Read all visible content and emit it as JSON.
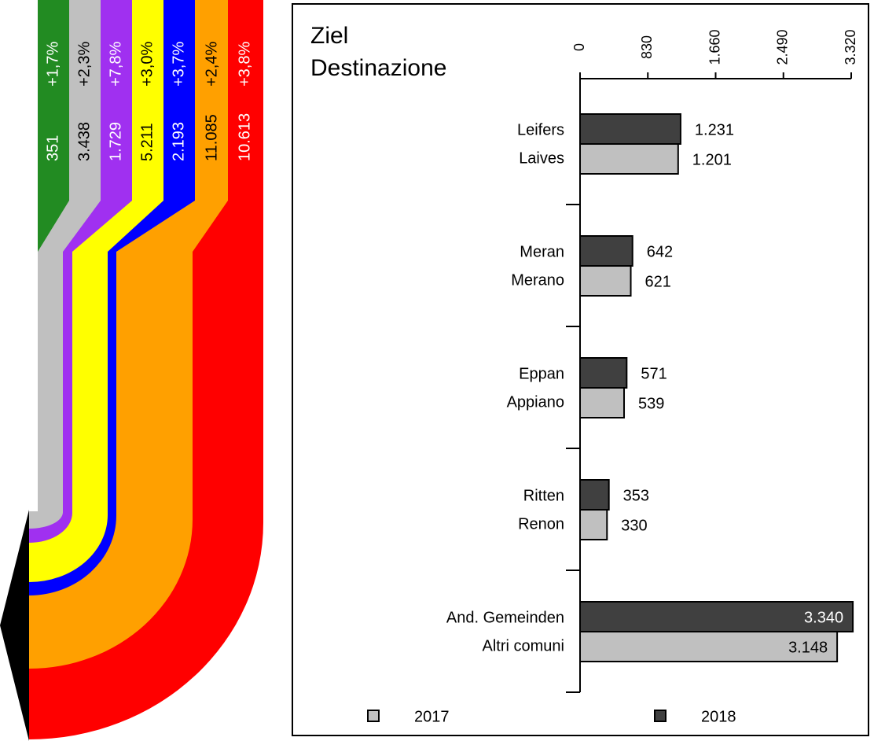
{
  "flows": [
    {
      "value": "351",
      "change": "+1,7%",
      "color": "#228b22",
      "text_color": "#ffffff"
    },
    {
      "value": "3.438",
      "change": "+2,3%",
      "color": "#c0c0c0",
      "text_color": "#000000"
    },
    {
      "value": "1.729",
      "change": "+7,8%",
      "color": "#a030f0",
      "text_color": "#ffffff"
    },
    {
      "value": "5.211",
      "change": "+3,0%",
      "color": "#ffff00",
      "text_color": "#000000"
    },
    {
      "value": "2.193",
      "change": "+3,7%",
      "color": "#0000ff",
      "text_color": "#ffffff"
    },
    {
      "value": "11.085",
      "change": "+2,4%",
      "color": "#ffa000",
      "text_color": "#000000"
    },
    {
      "value": "10.613",
      "change": "+3,8%",
      "color": "#ff0000",
      "text_color": "#ffffff"
    }
  ],
  "chart_data": {
    "type": "bar",
    "orientation": "horizontal",
    "title": [
      "Ziel",
      "Destinazione"
    ],
    "categories": [
      [
        "Leifers",
        "Laives"
      ],
      [
        "Meran",
        "Merano"
      ],
      [
        "Eppan",
        "Appiano"
      ],
      [
        "Ritten",
        "Renon"
      ],
      [
        "And. Gemeinden",
        "Altri comuni"
      ]
    ],
    "series": [
      {
        "name": "2017",
        "color": "#c0c0c0",
        "values": [
          1201,
          621,
          539,
          330,
          3148
        ],
        "value_labels": [
          "1.201",
          "621",
          "539",
          "330",
          "3.148"
        ]
      },
      {
        "name": "2018",
        "color": "#404040",
        "values": [
          1231,
          642,
          571,
          353,
          3340
        ],
        "value_labels": [
          "1.231",
          "642",
          "571",
          "353",
          "3.340"
        ]
      }
    ],
    "xlim": [
      0,
      3320
    ],
    "xticks": [
      0,
      830,
      {
        "value": 1660,
        "label": "1.660"
      },
      {
        "value": 2490,
        "label": "2.490"
      },
      {
        "value": 3320,
        "label": "3.320"
      }
    ]
  }
}
